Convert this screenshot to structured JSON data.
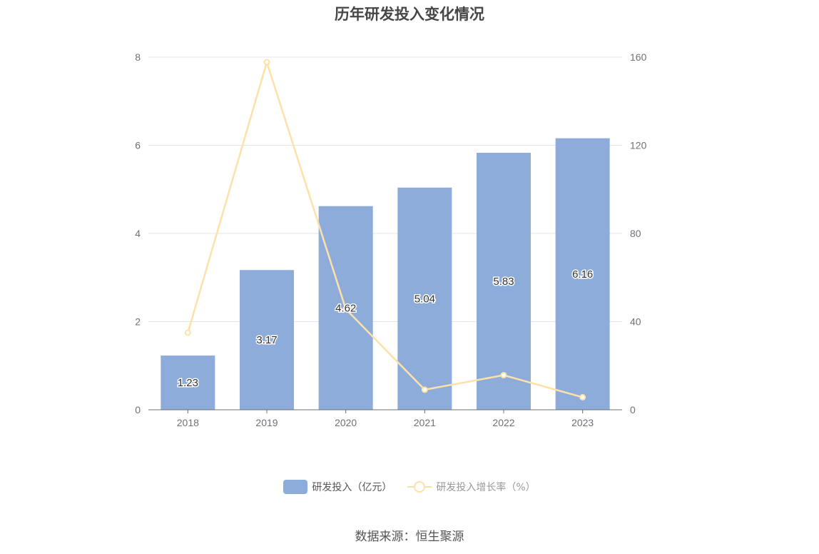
{
  "chart_data": {
    "type": "bar",
    "title": "历年研发投入变化情况",
    "categories": [
      "2018",
      "2019",
      "2020",
      "2021",
      "2022",
      "2023"
    ],
    "series": [
      {
        "name": "研发投入（亿元）",
        "type": "bar",
        "axis": "left",
        "values": [
          1.23,
          3.17,
          4.62,
          5.04,
          5.83,
          6.16
        ],
        "color": "#8eacda",
        "labels": [
          "1.23",
          "3.17",
          "4.62",
          "5.04",
          "5.83",
          "6.16"
        ]
      },
      {
        "name": "研发投入增长率（%）",
        "type": "line",
        "axis": "right",
        "values": [
          35,
          157.7,
          45.7,
          9.1,
          15.7,
          5.7
        ],
        "color": "#fde1a8"
      }
    ],
    "y_left": {
      "min": 0,
      "max": 8,
      "ticks": [
        "0",
        "2",
        "4",
        "6",
        "8"
      ]
    },
    "y_right": {
      "min": 0,
      "max": 160,
      "ticks": [
        "0",
        "40",
        "80",
        "120",
        "160"
      ]
    },
    "grid": true,
    "legend_position": "bottom-center",
    "source": "数据来源：恒生聚源"
  }
}
